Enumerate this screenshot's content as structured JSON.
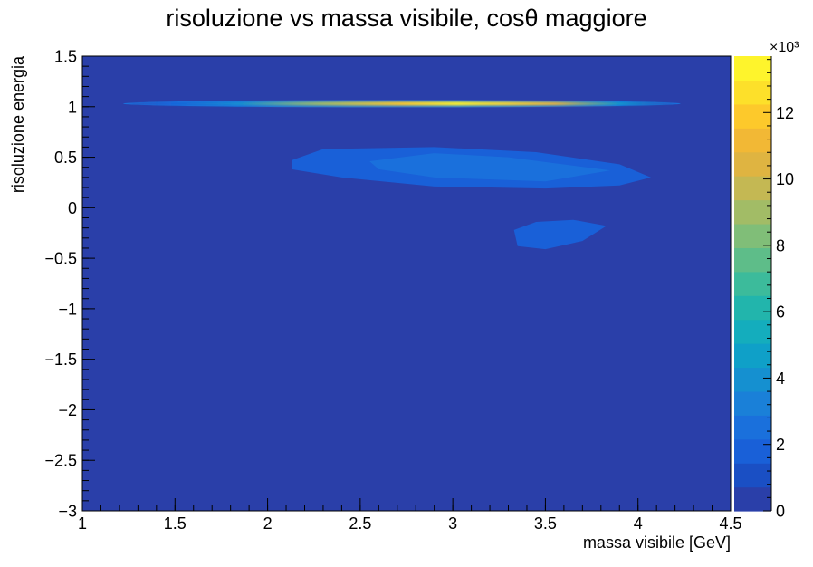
{
  "chart_data": {
    "type": "heatmap",
    "title": "risoluzione vs massa visibile,  cosθ maggiore",
    "xlabel": "massa visibile [GeV]",
    "ylabel": "risoluzione energia",
    "xlim": [
      1,
      4.5
    ],
    "ylim": [
      -3,
      1.5
    ],
    "x_ticks": [
      1,
      1.5,
      2,
      2.5,
      3,
      3.5,
      4,
      4.5
    ],
    "x_tick_labels": [
      "1",
      "1.5",
      "2",
      "2.5",
      "3",
      "3.5",
      "4",
      "4.5"
    ],
    "y_ticks": [
      1.5,
      1,
      0.5,
      0,
      -0.5,
      -1,
      -1.5,
      -2,
      -2.5,
      -3
    ],
    "y_tick_labels": [
      "1.5",
      "1",
      "0.5",
      "0",
      "−0.5",
      "−1",
      "−1.5",
      "−2",
      "−2.5",
      "−3"
    ],
    "z_range": [
      0,
      13700
    ],
    "z_ticks": [
      0,
      2,
      4,
      6,
      8,
      10,
      12
    ],
    "z_tick_labels": [
      "0",
      "2",
      "4",
      "6",
      "8",
      "10",
      "12"
    ],
    "z_exponent_label": "×10³",
    "colorbar_side": "right",
    "background_color": "#2a3fa9",
    "regions": [
      {
        "name": "band near resolution 1",
        "x_range": [
          1.22,
          4.23
        ],
        "y_center": 1.03,
        "peak_x": 3.0,
        "peak_z": 13000
      },
      {
        "name": "cluster near resolution 0.35",
        "x_range": [
          2.13,
          4.07
        ],
        "y_range": [
          0.18,
          0.6
        ],
        "peak_z": 1500
      },
      {
        "name": "cluster near resolution -0.25",
        "x_range": [
          3.33,
          3.83
        ],
        "y_range": [
          -0.43,
          -0.12
        ],
        "peak_z": 1000
      }
    ],
    "palette": [
      "#2a3fa9",
      "#1a4fc4",
      "#1960d8",
      "#1a70dc",
      "#1a80d8",
      "#1590d0",
      "#0fa0c8",
      "#14adbd",
      "#22b5ac",
      "#3cbb9b",
      "#5ebd89",
      "#80be78",
      "#a2bc66",
      "#c4b853",
      "#dfb441",
      "#f2b835",
      "#fdc92b",
      "#fde02a",
      "#fef42c"
    ]
  }
}
